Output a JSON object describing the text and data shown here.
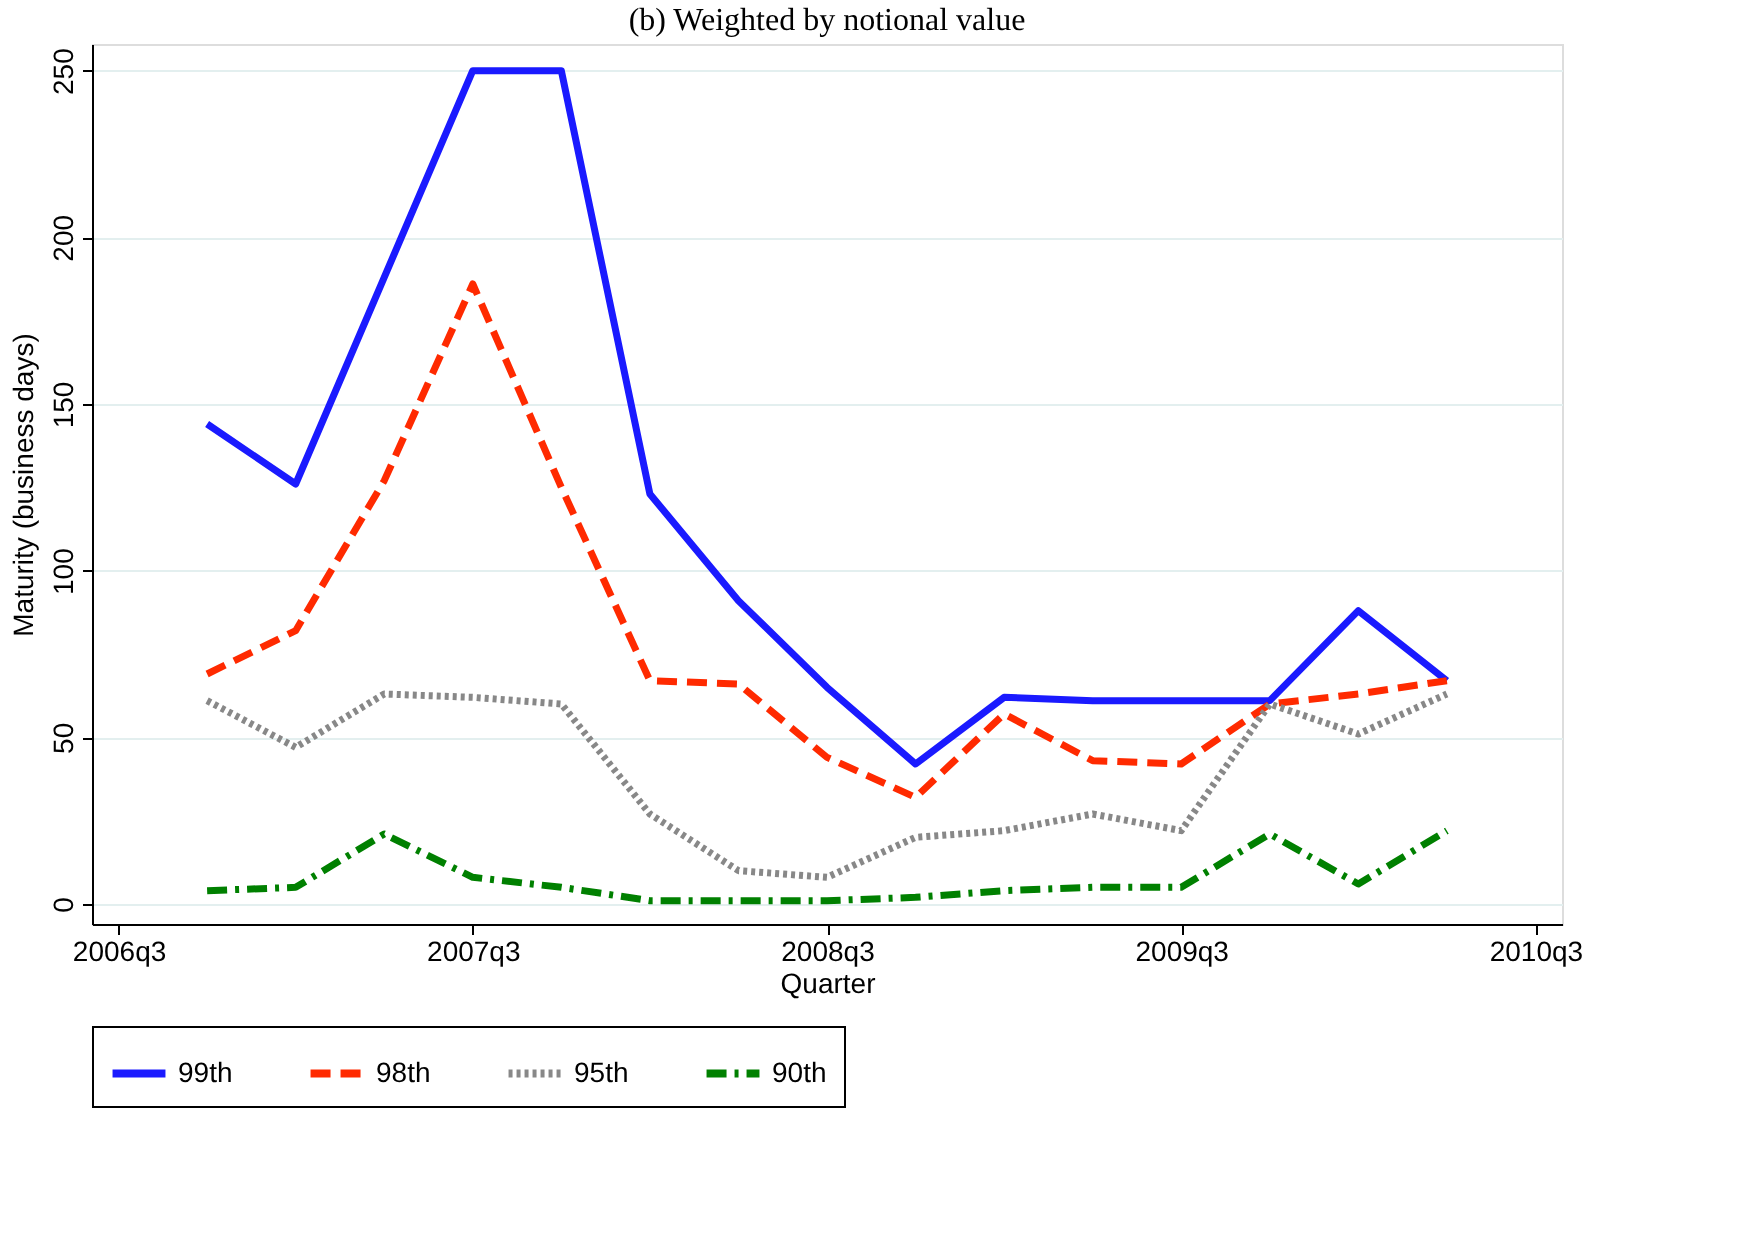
{
  "chart_data": {
    "type": "line",
    "title": "(b) Weighted by notional value",
    "xlabel": "Quarter",
    "ylabel": "Maturity (business days)",
    "categories": [
      "2006q3",
      null,
      null,
      null,
      "2007q3",
      null,
      null,
      null,
      "2008q3",
      null,
      null,
      null,
      "2009q3",
      null,
      null,
      null,
      "2010q3"
    ],
    "series": [
      {
        "name": "99th",
        "color": "#1a1aff",
        "line_style": "solid",
        "values": [
          null,
          144,
          126,
          188,
          250,
          250,
          123,
          91,
          65,
          42,
          62,
          61,
          61,
          61,
          88,
          67,
          null
        ]
      },
      {
        "name": "98th",
        "color": "#ff2a00",
        "line_style": "dashed",
        "values": [
          null,
          69,
          82,
          127,
          186,
          125,
          67,
          66,
          44,
          32,
          57,
          43,
          42,
          60,
          63,
          67,
          null
        ]
      },
      {
        "name": "95th",
        "color": "#888888",
        "line_style": "dotted",
        "values": [
          null,
          61,
          47,
          63,
          62,
          60,
          27,
          10,
          8,
          20,
          22,
          27,
          22,
          60,
          51,
          63,
          null
        ]
      },
      {
        "name": "90th",
        "color": "#008000",
        "line_style": "dashdot",
        "values": [
          null,
          4,
          5,
          21,
          8,
          5,
          1,
          1,
          1,
          2,
          4,
          5,
          5,
          21,
          6,
          22,
          null
        ]
      }
    ],
    "ylim": [
      -6,
      258
    ],
    "yticks": [
      0,
      50,
      100,
      150,
      200,
      250
    ],
    "grid": "y",
    "legend": "bottom",
    "marker": "none"
  }
}
